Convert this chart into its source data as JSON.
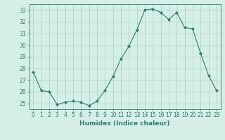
{
  "x": [
    0,
    1,
    2,
    3,
    4,
    5,
    6,
    7,
    8,
    9,
    10,
    11,
    12,
    13,
    14,
    15,
    16,
    17,
    18,
    19,
    20,
    21,
    22,
    23
  ],
  "y": [
    27.7,
    26.1,
    26.0,
    24.9,
    25.1,
    25.2,
    25.1,
    24.8,
    25.2,
    26.1,
    27.3,
    28.8,
    29.9,
    31.3,
    33.0,
    33.1,
    32.8,
    32.2,
    32.8,
    31.5,
    31.4,
    29.3,
    27.4,
    26.1
  ],
  "line_color": "#2e7d6e",
  "marker": "D",
  "marker_size": 2.0,
  "bg_color": "#d6eee8",
  "grid_color": "#b0d4cc",
  "xlabel": "Humidex (Indice chaleur)",
  "xlim": [
    -0.5,
    23.5
  ],
  "ylim": [
    24.5,
    33.5
  ],
  "yticks": [
    25,
    26,
    27,
    28,
    29,
    30,
    31,
    32,
    33
  ],
  "xticks": [
    0,
    1,
    2,
    3,
    4,
    5,
    6,
    7,
    8,
    9,
    10,
    11,
    12,
    13,
    14,
    15,
    16,
    17,
    18,
    19,
    20,
    21,
    22,
    23
  ],
  "tick_label_color": "#2e7d6e",
  "xlabel_fontsize": 6.5,
  "tick_fontsize": 5.5,
  "linewidth": 0.8
}
